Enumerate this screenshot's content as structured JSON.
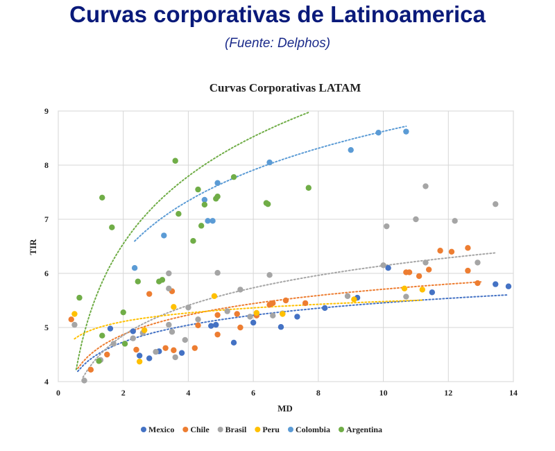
{
  "header": {
    "title": "Curvas corporativas de Latinoamerica",
    "subtitle": "(Fuente: Delphos)"
  },
  "chart_data": {
    "type": "scatter",
    "title": "Curvas Corporativas LATAM",
    "xlabel": "MD",
    "ylabel": "TIR",
    "xlim": [
      0,
      14
    ],
    "ylim": [
      4,
      9
    ],
    "xticks": [
      0,
      2,
      4,
      6,
      8,
      10,
      12,
      14
    ],
    "yticks": [
      4,
      5,
      6,
      7,
      8,
      9
    ],
    "grid": true,
    "legend_position": "bottom",
    "series": [
      {
        "name": "Mexico",
        "color": "#4472c4",
        "points": [
          [
            1.6,
            4.98
          ],
          [
            2.3,
            4.93
          ],
          [
            2.5,
            4.48
          ],
          [
            2.8,
            4.43
          ],
          [
            3.1,
            4.56
          ],
          [
            3.8,
            4.53
          ],
          [
            4.7,
            5.03
          ],
          [
            4.85,
            5.05
          ],
          [
            5.4,
            4.72
          ],
          [
            6.0,
            5.09
          ],
          [
            6.85,
            5.01
          ],
          [
            7.35,
            5.2
          ],
          [
            8.2,
            5.36
          ],
          [
            9.2,
            5.55
          ],
          [
            10.15,
            6.1
          ],
          [
            11.5,
            5.65
          ],
          [
            13.45,
            5.8
          ],
          [
            13.85,
            5.76
          ]
        ]
      },
      {
        "name": "Chile",
        "color": "#ed7d31",
        "points": [
          [
            0.4,
            5.15
          ],
          [
            1.0,
            4.22
          ],
          [
            1.5,
            4.5
          ],
          [
            2.4,
            4.59
          ],
          [
            2.8,
            5.62
          ],
          [
            3.3,
            4.62
          ],
          [
            3.5,
            5.67
          ],
          [
            3.55,
            4.58
          ],
          [
            4.2,
            4.62
          ],
          [
            4.3,
            5.04
          ],
          [
            4.9,
            5.23
          ],
          [
            4.9,
            4.87
          ],
          [
            5.5,
            5.25
          ],
          [
            5.6,
            5.0
          ],
          [
            6.1,
            5.22
          ],
          [
            6.5,
            5.42
          ],
          [
            6.6,
            5.45
          ],
          [
            7.0,
            5.5
          ],
          [
            7.6,
            5.45
          ],
          [
            10.7,
            6.02
          ],
          [
            10.8,
            6.02
          ],
          [
            11.1,
            5.95
          ],
          [
            11.4,
            6.07
          ],
          [
            11.75,
            6.42
          ],
          [
            12.1,
            6.4
          ],
          [
            12.6,
            6.47
          ],
          [
            12.6,
            6.05
          ],
          [
            12.9,
            5.82
          ]
        ]
      },
      {
        "name": "Brasil",
        "color": "#a5a5a5",
        "points": [
          [
            0.5,
            5.05
          ],
          [
            0.8,
            4.02
          ],
          [
            1.3,
            4.4
          ],
          [
            1.7,
            4.7
          ],
          [
            2.3,
            4.8
          ],
          [
            2.6,
            4.9
          ],
          [
            3.0,
            4.55
          ],
          [
            3.4,
            6.0
          ],
          [
            3.4,
            5.72
          ],
          [
            3.4,
            5.05
          ],
          [
            3.5,
            4.92
          ],
          [
            3.6,
            4.45
          ],
          [
            3.9,
            4.77
          ],
          [
            4.0,
            5.37
          ],
          [
            4.3,
            5.15
          ],
          [
            4.9,
            6.01
          ],
          [
            5.2,
            5.3
          ],
          [
            5.6,
            5.7
          ],
          [
            5.9,
            5.2
          ],
          [
            6.5,
            5.97
          ],
          [
            6.6,
            5.22
          ],
          [
            6.9,
            5.26
          ],
          [
            8.9,
            5.58
          ],
          [
            10.0,
            6.15
          ],
          [
            10.1,
            6.87
          ],
          [
            10.7,
            5.57
          ],
          [
            11.0,
            7.0
          ],
          [
            11.3,
            7.61
          ],
          [
            11.3,
            6.2
          ],
          [
            12.2,
            6.97
          ],
          [
            12.9,
            6.2
          ],
          [
            13.45,
            7.28
          ]
        ]
      },
      {
        "name": "Peru",
        "color": "#ffc000",
        "points": [
          [
            0.5,
            5.25
          ],
          [
            2.5,
            4.37
          ],
          [
            2.65,
            4.95
          ],
          [
            3.55,
            5.38
          ],
          [
            4.8,
            5.58
          ],
          [
            6.1,
            5.27
          ],
          [
            6.9,
            5.25
          ],
          [
            9.1,
            5.52
          ],
          [
            10.65,
            5.72
          ],
          [
            11.2,
            5.7
          ]
        ]
      },
      {
        "name": "Colombia",
        "color": "#5b9bd5",
        "points": [
          [
            2.35,
            6.1
          ],
          [
            3.25,
            6.7
          ],
          [
            4.5,
            7.36
          ],
          [
            4.6,
            6.97
          ],
          [
            4.75,
            6.97
          ],
          [
            4.9,
            7.67
          ],
          [
            6.5,
            8.05
          ],
          [
            9.0,
            8.28
          ],
          [
            9.85,
            8.6
          ],
          [
            10.7,
            8.62
          ]
        ]
      },
      {
        "name": "Argentina",
        "color": "#70ad47",
        "points": [
          [
            0.65,
            5.55
          ],
          [
            1.25,
            4.38
          ],
          [
            1.35,
            7.4
          ],
          [
            1.35,
            4.85
          ],
          [
            1.65,
            6.85
          ],
          [
            2.0,
            5.28
          ],
          [
            2.05,
            4.7
          ],
          [
            2.45,
            5.85
          ],
          [
            3.1,
            5.85
          ],
          [
            3.2,
            5.88
          ],
          [
            3.6,
            8.08
          ],
          [
            3.7,
            7.1
          ],
          [
            4.15,
            6.6
          ],
          [
            4.3,
            7.55
          ],
          [
            4.4,
            6.88
          ],
          [
            4.5,
            7.27
          ],
          [
            4.85,
            7.38
          ],
          [
            4.9,
            7.42
          ],
          [
            5.4,
            7.78
          ],
          [
            6.4,
            7.3
          ],
          [
            6.45,
            7.28
          ],
          [
            7.7,
            7.58
          ]
        ]
      }
    ],
    "trendlines": [
      {
        "series": "Mexico",
        "x_range": [
          0.6,
          13.85
        ],
        "a": 4.42,
        "b": 0.45
      },
      {
        "series": "Chile",
        "x_range": [
          0.6,
          13.0
        ],
        "a": 4.51,
        "b": 0.52
      },
      {
        "series": "Brasil",
        "x_range": [
          0.6,
          13.45
        ],
        "a": 4.3,
        "b": 0.8
      },
      {
        "series": "Peru",
        "x_range": [
          0.5,
          11.2
        ],
        "a": 4.95,
        "b": 0.23
      },
      {
        "series": "Colombia",
        "x_range": [
          2.35,
          10.7
        ],
        "a": 5.4,
        "b": 1.4
      },
      {
        "series": "Argentina",
        "x_range": [
          0.55,
          7.7
        ],
        "a": 5.3,
        "b": 1.8
      }
    ]
  }
}
